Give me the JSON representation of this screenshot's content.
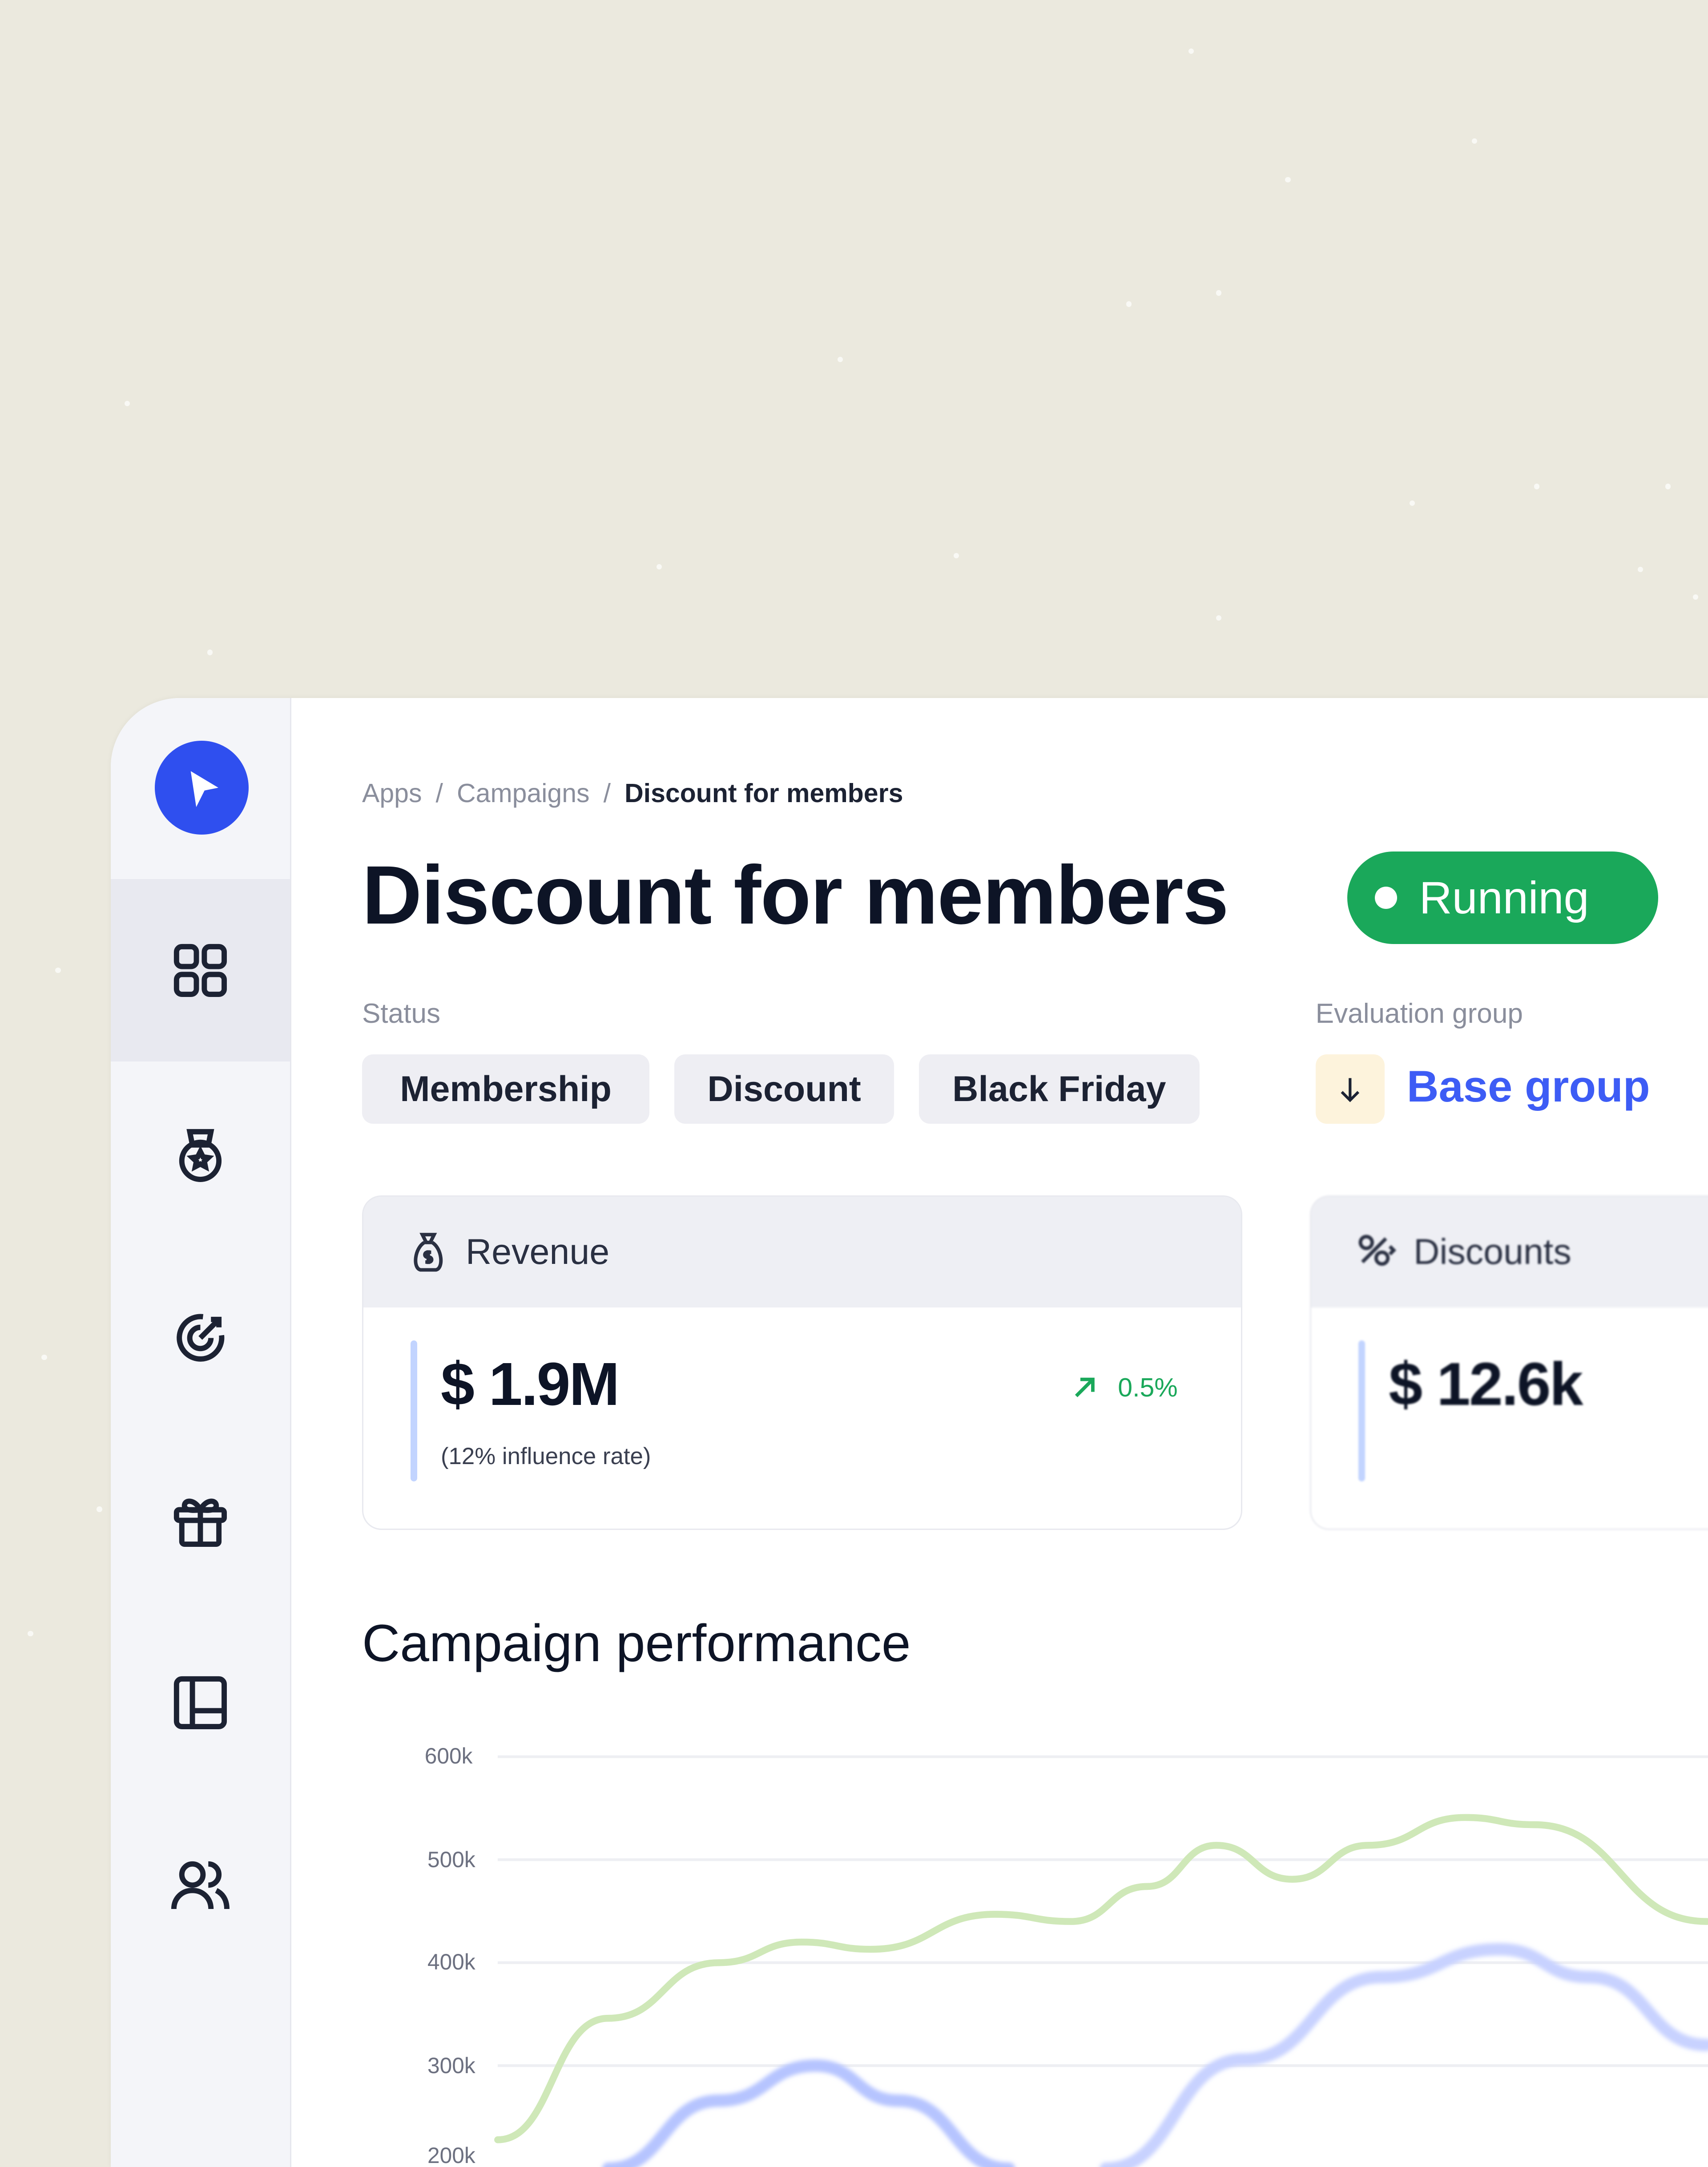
{
  "breadcrumb": [
    "Apps",
    "Campaigns",
    "Discount for members"
  ],
  "page_title": "Discount for members",
  "status_badge": "Running",
  "status": {
    "label": "Status",
    "tags": [
      "Membership",
      "Discount",
      "Black Friday"
    ]
  },
  "evaluation_group": {
    "label": "Evaluation group",
    "value": "Base group",
    "icon": "arrow-down-icon"
  },
  "kpis": [
    {
      "title": "Revenue",
      "icon": "money-bag-icon",
      "value": "$ 1.9M",
      "note": "(12% influence rate)",
      "change": "0.5%",
      "trend": "up"
    },
    {
      "title": "Discounts",
      "icon": "discount-icon",
      "value": "$ 12.6k"
    }
  ],
  "sidebar": {
    "items": [
      {
        "icon": "grid-icon",
        "active": true
      },
      {
        "icon": "medal-icon"
      },
      {
        "icon": "target-icon"
      },
      {
        "icon": "gift-icon"
      },
      {
        "icon": "layout-icon"
      },
      {
        "icon": "users-icon"
      }
    ]
  },
  "colors": {
    "accent": "#2f4fef",
    "running": "#1aa85a",
    "link": "#3d5cf5",
    "series_green": "#cfe8b8",
    "series_blue": "#b6c4ff",
    "background": "#ebe9de"
  },
  "chart_data": {
    "type": "line",
    "title": "Campaign performance",
    "yticks": [
      "600k",
      "500k",
      "400k",
      "300k",
      "200k"
    ],
    "ylim": [
      200,
      600
    ],
    "grid": true,
    "series": [
      {
        "color": "#cfe8b8",
        "points": [
          [
            0,
            228
          ],
          [
            1.6,
            346
          ],
          [
            3.2,
            400
          ],
          [
            4.4,
            420
          ],
          [
            5.4,
            413
          ],
          [
            7.2,
            447
          ],
          [
            8.3,
            440
          ],
          [
            9.4,
            474
          ],
          [
            10.4,
            514
          ],
          [
            11.5,
            481
          ],
          [
            12.6,
            514
          ],
          [
            14,
            541
          ],
          [
            15,
            534
          ],
          [
            17.5,
            440
          ]
        ]
      },
      {
        "color": "#b6c4ff",
        "points": [
          [
            1.6,
            200
          ],
          [
            3.2,
            266
          ],
          [
            4.6,
            300
          ],
          [
            5.8,
            266
          ],
          [
            7.4,
            200
          ]
        ]
      },
      {
        "color": "#c8d2ff",
        "points": [
          [
            8.8,
            200
          ],
          [
            10.8,
            306
          ],
          [
            12.8,
            386
          ],
          [
            14.5,
            413
          ],
          [
            15.8,
            386
          ],
          [
            17.5,
            320
          ]
        ]
      }
    ]
  }
}
